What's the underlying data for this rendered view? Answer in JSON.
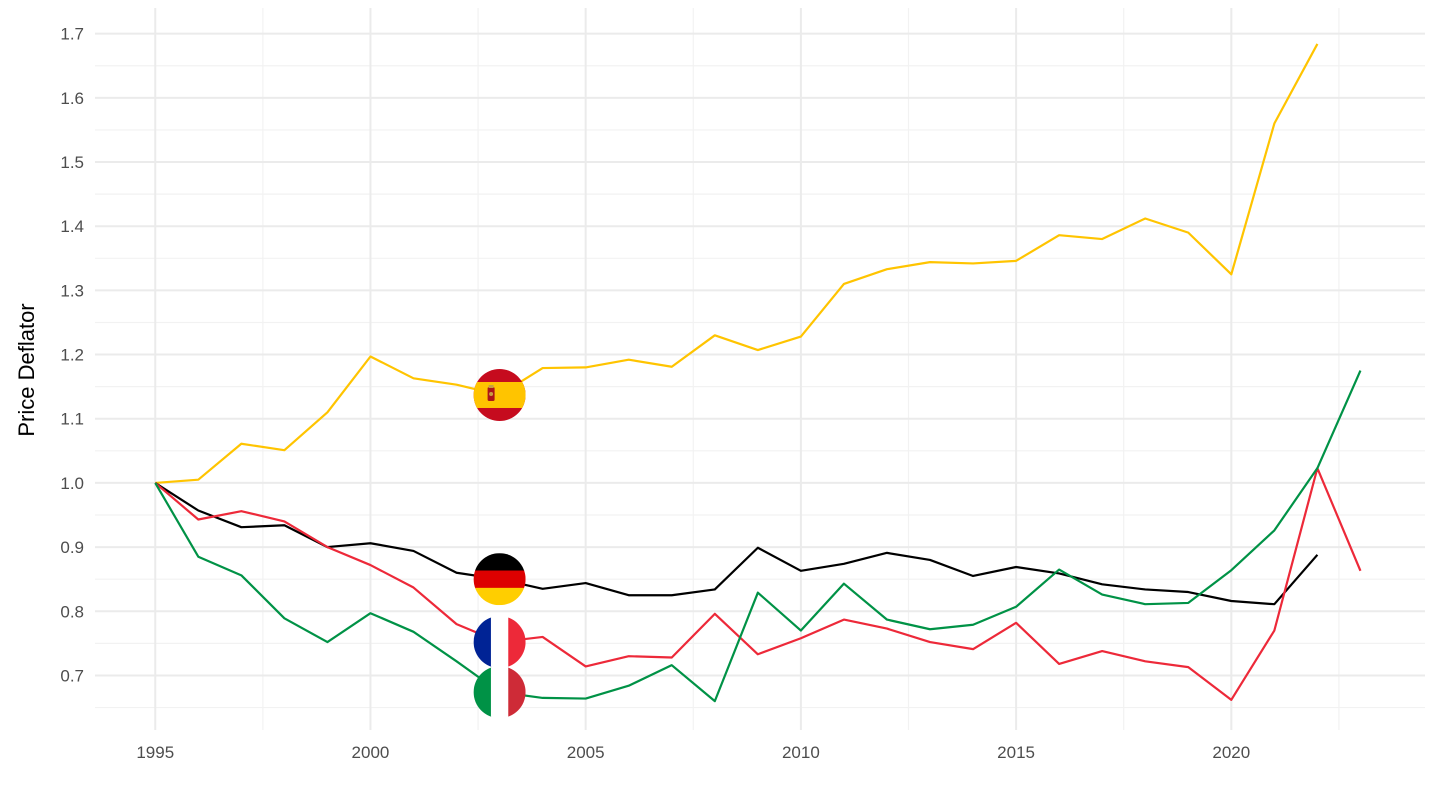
{
  "chart_data": {
    "type": "line",
    "title": "",
    "xlabel": "",
    "ylabel": "Price Deflator",
    "xlim": [
      1993.6,
      2024.5
    ],
    "ylim": [
      0.615,
      1.74
    ],
    "x_major_ticks": [
      1995,
      2000,
      2005,
      2010,
      2015,
      2020
    ],
    "x_minor_ticks": [
      1997.5,
      2002.5,
      2007.5,
      2012.5,
      2017.5,
      2022.5
    ],
    "y_major_ticks": [
      0.7,
      0.8,
      0.9,
      1.0,
      1.1,
      1.2,
      1.3,
      1.4,
      1.5,
      1.6,
      1.7
    ],
    "y_tick_labels": [
      "0.7",
      "0.8",
      "0.9",
      "1.0",
      "1.1",
      "1.2",
      "1.3",
      "1.4",
      "1.5",
      "1.6",
      "1.7"
    ],
    "y_minor_ticks": [
      0.65,
      0.75,
      0.85,
      0.95,
      1.05,
      1.15,
      1.25,
      1.35,
      1.45,
      1.55,
      1.65
    ],
    "grid": true,
    "legend": "flag markers placed at x = 2003 on each series",
    "series": [
      {
        "country": "Spain",
        "color": "#FFC400",
        "flag": "spain-flag",
        "x": [
          1995,
          1996,
          1997,
          1998,
          1999,
          2000,
          2001,
          2002,
          2003,
          2004,
          2005,
          2006,
          2007,
          2008,
          2009,
          2010,
          2011,
          2012,
          2013,
          2014,
          2015,
          2016,
          2017,
          2018,
          2019,
          2020,
          2021,
          2022
        ],
        "values": [
          1.0,
          1.005,
          1.061,
          1.051,
          1.11,
          1.197,
          1.163,
          1.153,
          1.137,
          1.179,
          1.18,
          1.192,
          1.181,
          1.23,
          1.207,
          1.228,
          1.31,
          1.333,
          1.344,
          1.342,
          1.346,
          1.386,
          1.38,
          1.412,
          1.39,
          1.325,
          1.56,
          1.684
        ]
      },
      {
        "country": "Germany",
        "color": "#000000",
        "flag": "germany-flag",
        "x": [
          1995,
          1996,
          1997,
          1998,
          1999,
          2000,
          2001,
          2002,
          2003,
          2004,
          2005,
          2006,
          2007,
          2008,
          2009,
          2010,
          2011,
          2012,
          2013,
          2014,
          2015,
          2016,
          2017,
          2018,
          2019,
          2020,
          2021,
          2022
        ],
        "values": [
          1.0,
          0.957,
          0.931,
          0.934,
          0.9,
          0.906,
          0.894,
          0.86,
          0.85,
          0.835,
          0.844,
          0.825,
          0.825,
          0.834,
          0.899,
          0.863,
          0.874,
          0.891,
          0.88,
          0.855,
          0.869,
          0.859,
          0.842,
          0.834,
          0.83,
          0.816,
          0.811,
          0.888
        ]
      },
      {
        "country": "France",
        "color": "#ED2939",
        "flag": "france-flag",
        "x": [
          1995,
          1996,
          1997,
          1998,
          1999,
          2000,
          2001,
          2002,
          2003,
          2004,
          2005,
          2006,
          2007,
          2008,
          2009,
          2010,
          2011,
          2012,
          2013,
          2014,
          2015,
          2016,
          2017,
          2018,
          2019,
          2020,
          2021,
          2022,
          2023
        ],
        "values": [
          1.0,
          0.943,
          0.956,
          0.94,
          0.9,
          0.872,
          0.837,
          0.78,
          0.752,
          0.76,
          0.714,
          0.73,
          0.728,
          0.796,
          0.733,
          0.758,
          0.787,
          0.773,
          0.752,
          0.741,
          0.782,
          0.718,
          0.738,
          0.722,
          0.713,
          0.662,
          0.77,
          1.023,
          0.863
        ]
      },
      {
        "country": "Italy",
        "color": "#009246",
        "flag": "italy-flag",
        "x": [
          1995,
          1996,
          1997,
          1998,
          1999,
          2000,
          2001,
          2002,
          2003,
          2004,
          2005,
          2006,
          2007,
          2008,
          2009,
          2010,
          2011,
          2012,
          2013,
          2014,
          2015,
          2016,
          2017,
          2018,
          2019,
          2020,
          2021,
          2022,
          2023
        ],
        "values": [
          1.0,
          0.885,
          0.856,
          0.789,
          0.752,
          0.797,
          0.768,
          0.722,
          0.674,
          0.665,
          0.664,
          0.684,
          0.716,
          0.66,
          0.829,
          0.77,
          0.843,
          0.787,
          0.772,
          0.779,
          0.807,
          0.865,
          0.826,
          0.811,
          0.813,
          0.864,
          0.926,
          1.023,
          1.175
        ]
      }
    ],
    "flag_markers": {
      "x": 2003,
      "items": [
        {
          "country": "Spain",
          "y": 1.137,
          "name": "spain-flag-icon"
        },
        {
          "country": "Germany",
          "y": 0.85,
          "name": "germany-flag-icon"
        },
        {
          "country": "France",
          "y": 0.752,
          "name": "france-flag-icon"
        },
        {
          "country": "Italy",
          "y": 0.674,
          "name": "italy-flag-icon"
        }
      ]
    }
  }
}
